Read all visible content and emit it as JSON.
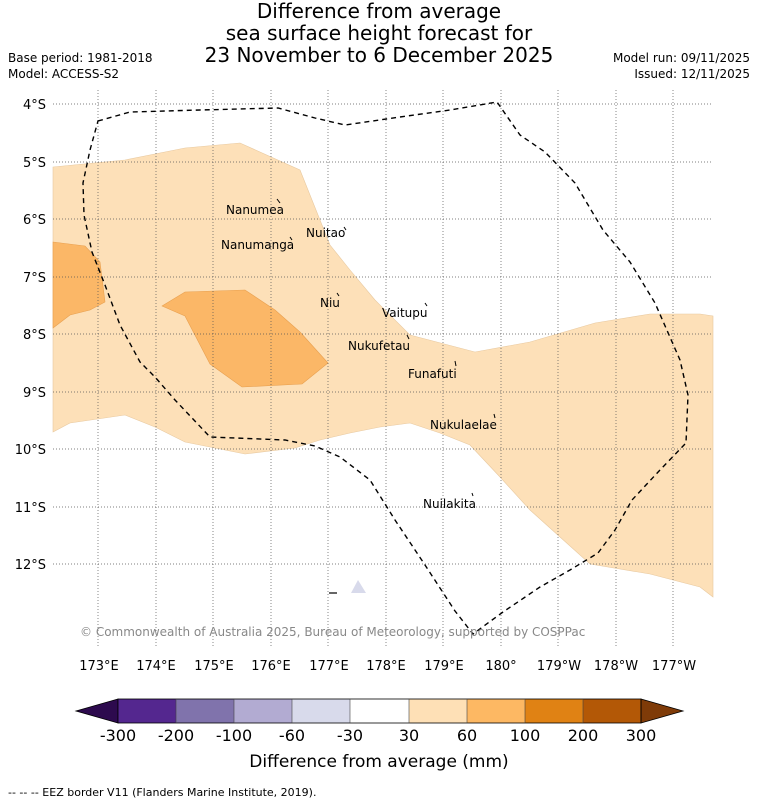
{
  "title": {
    "line1": "Difference from average",
    "line2": "sea surface height forecast for",
    "line3": "23 November to 6 December 2025"
  },
  "meta": {
    "base_period": "Base period: 1981-2018",
    "model": "Model: ACCESS-S2",
    "model_run": "Model run: 09/11/2025",
    "issued": "Issued: 12/11/2025"
  },
  "map": {
    "lat_ticks": [
      "4°S",
      "5°S",
      "6°S",
      "7°S",
      "8°S",
      "9°S",
      "10°S",
      "11°S",
      "12°S"
    ],
    "lon_ticks": [
      "173°E",
      "174°E",
      "175°E",
      "176°E",
      "177°E",
      "178°E",
      "179°E",
      "180°",
      "179°W",
      "178°W",
      "177°W"
    ],
    "places": [
      "Nanumea",
      "Nuitao",
      "Nanumanga",
      "Niu",
      "Vaitupu",
      "Nukufetau",
      "Funafuti",
      "Nukulaelae",
      "Nuilakita"
    ],
    "credit": "© Commonwealth of Australia 2025, Bureau of Meteorology, supported by COSPPac",
    "colors": {
      "band_30_60": "#fde0b8",
      "band_60_100": "#fbb767",
      "eez_line": "#000000"
    }
  },
  "colorbar": {
    "labels": [
      "-300",
      "-200",
      "-100",
      "-60",
      "-30",
      "30",
      "60",
      "100",
      "200",
      "300"
    ],
    "colors": [
      "#2d0a4e",
      "#54278f",
      "#8073ac",
      "#b2abd2",
      "#d8daeb",
      "#ffffff",
      "#fee0b6",
      "#fdb863",
      "#e08214",
      "#b35806",
      "#7f3b08"
    ],
    "title": "Difference from average (mm)"
  },
  "footer": "--  --  -- EEZ border V11 (Flanders Marine Institute, 2019)."
}
